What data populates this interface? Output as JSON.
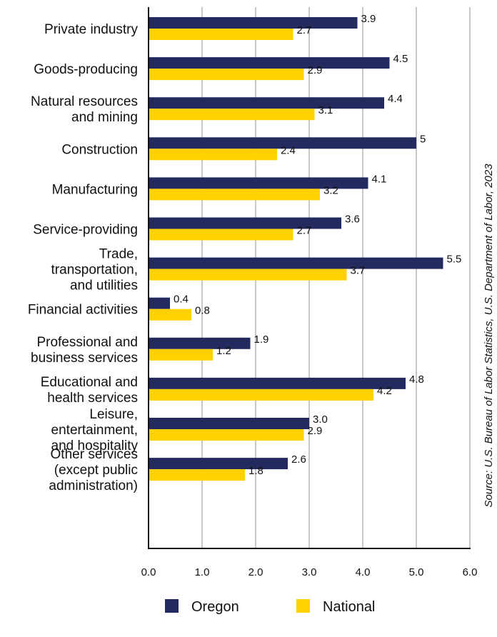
{
  "chart_data": {
    "type": "bar",
    "orientation": "horizontal",
    "categories": [
      [
        "Private industry"
      ],
      [
        "Goods-producing"
      ],
      [
        "Natural resources",
        "and mining"
      ],
      [
        "Construction"
      ],
      [
        "Manufacturing"
      ],
      [
        "Service-providing"
      ],
      [
        "Trade,",
        "transportation,",
        "and utilities"
      ],
      [
        "Financial activities"
      ],
      [
        "Professional and",
        "business services"
      ],
      [
        "Educational and",
        "health services"
      ],
      [
        "Leisure,",
        "entertainment,",
        "and hospitality"
      ],
      [
        "Other services",
        "(except public",
        "administration)"
      ]
    ],
    "series": [
      {
        "name": "Oregon",
        "color": "#232b5e",
        "values": [
          3.9,
          4.5,
          4.4,
          5,
          4.1,
          3.6,
          5.5,
          0.4,
          1.9,
          4.8,
          3.0,
          2.6
        ],
        "labels": [
          "3.9",
          "4.5",
          "4.4",
          "5",
          "4.1",
          "3.6",
          "5.5",
          "0.4",
          "1.9",
          "4.8",
          "3.0",
          "2.6"
        ]
      },
      {
        "name": "National",
        "color": "#ffd100",
        "values": [
          2.7,
          2.9,
          3.1,
          2.4,
          3.2,
          2.7,
          3.7,
          0.8,
          1.2,
          4.2,
          2.9,
          1.8
        ],
        "labels": [
          "2.7",
          "2.9",
          "3.1",
          "2.4",
          "3.2",
          "2.7",
          "3.7",
          "0.8",
          "1.2",
          "4.2",
          "2.9",
          "1.8"
        ]
      }
    ],
    "xlim": [
      0,
      6
    ],
    "xticks": [
      "0.0",
      "1.0",
      "2.0",
      "3.0",
      "4.0",
      "5.0",
      "6.0"
    ],
    "grid": true,
    "legend_position": "bottom",
    "source": "Source: U.S. Bureau of Labor Statistics, U.S. Department of Labor, 2023"
  }
}
